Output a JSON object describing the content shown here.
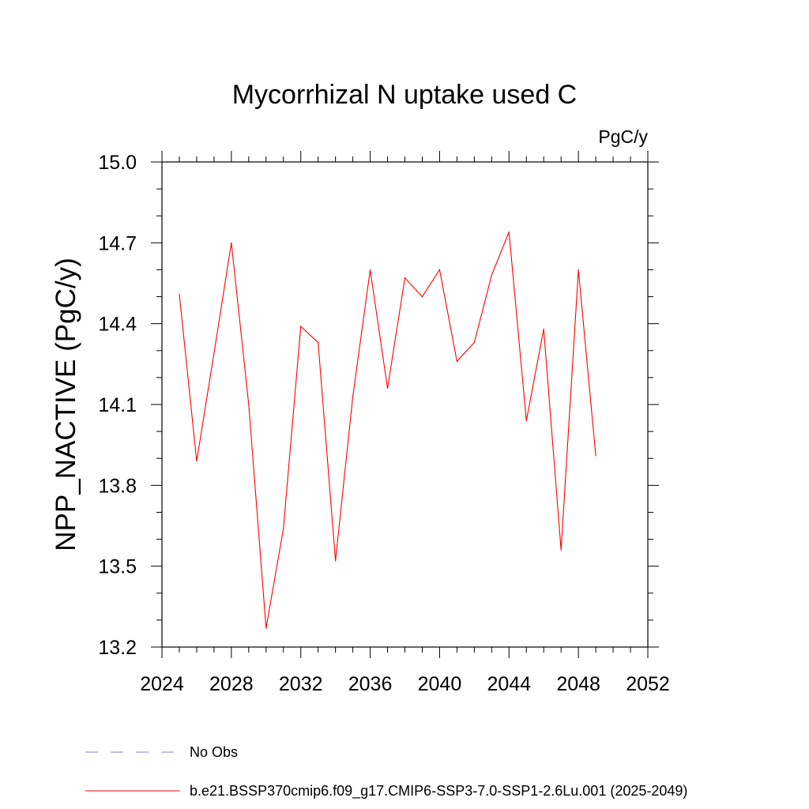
{
  "chart_data": {
    "type": "line",
    "title": "Mycorrhizal N uptake used C",
    "units_label": "PgC/y",
    "xlabel": "",
    "ylabel": "NPP_NACTIVE  (PgC/y)",
    "xlim": [
      2024,
      2052
    ],
    "ylim": [
      13.2,
      15.0
    ],
    "x_ticks": [
      2024,
      2028,
      2032,
      2036,
      2040,
      2044,
      2048,
      2052
    ],
    "x_tick_labels": [
      "2024",
      "2028",
      "2032",
      "2036",
      "2040",
      "2044",
      "2048",
      "2052"
    ],
    "x_minor_step": 1,
    "y_ticks": [
      13.2,
      13.5,
      13.8,
      14.1,
      14.4,
      14.7,
      15.0
    ],
    "y_tick_labels": [
      "13.2",
      "13.5",
      "13.8",
      "14.1",
      "14.4",
      "14.7",
      "15.0"
    ],
    "y_minor_step": 0.1,
    "grid": false,
    "legend_position": "bottom",
    "series": [
      {
        "name": "b.e21.BSSP370cmip6.f09_g17.CMIP6-SSP3-7.0-SSP1-2.6Lu.001 (2025-2049)",
        "color": "#ff0000",
        "style": "solid",
        "x": [
          2025,
          2026,
          2027,
          2028,
          2029,
          2030,
          2031,
          2032,
          2033,
          2034,
          2035,
          2036,
          2037,
          2038,
          2039,
          2040,
          2041,
          2042,
          2043,
          2044,
          2045,
          2046,
          2047,
          2048,
          2049
        ],
        "values": [
          14.51,
          13.89,
          14.29,
          14.7,
          14.1,
          13.27,
          13.64,
          14.39,
          14.33,
          13.52,
          14.13,
          14.6,
          14.16,
          14.57,
          14.5,
          14.6,
          14.26,
          14.33,
          14.58,
          14.74,
          14.04,
          14.38,
          13.56,
          14.6,
          13.91
        ]
      }
    ],
    "legend": [
      {
        "label": "No Obs",
        "color": "#8a7fd0",
        "style": "dashed"
      },
      {
        "label": "b.e21.BSSP370cmip6.f09_g17.CMIP6-SSP3-7.0-SSP1-2.6Lu.001 (2025-2049)",
        "color": "#ff0000",
        "style": "solid"
      }
    ]
  }
}
